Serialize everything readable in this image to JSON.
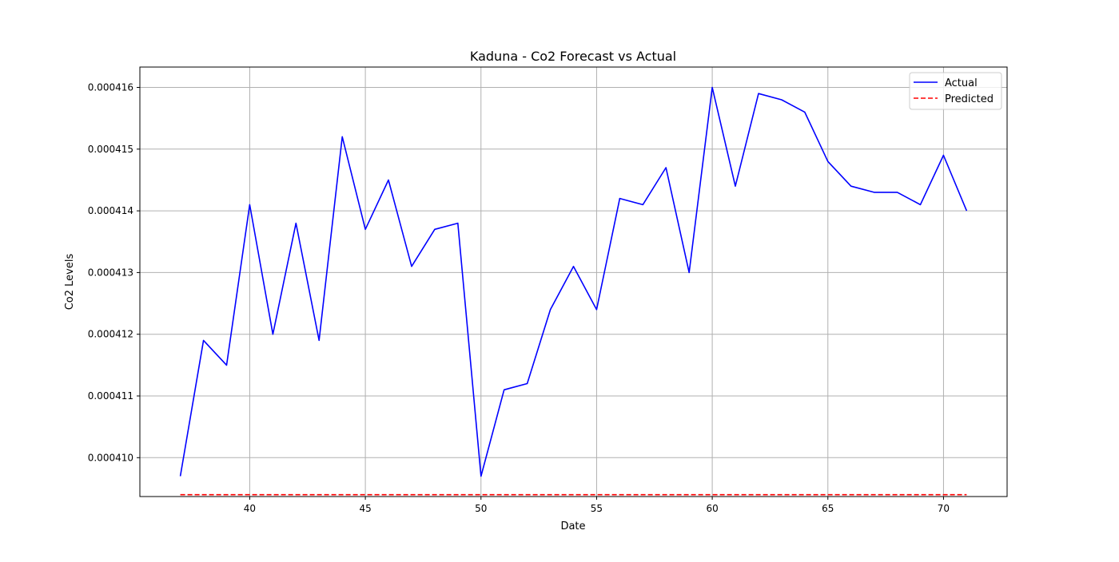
{
  "chart_data": {
    "type": "line",
    "title": "Kaduna - Co2 Forecast vs Actual",
    "xlabel": "Date",
    "ylabel": "Co2 Levels",
    "xlim": [
      35.25,
      72.75
    ],
    "ylim": [
      0.00040937,
      0.00041633
    ],
    "xticks": [
      40,
      45,
      50,
      55,
      60,
      65,
      70
    ],
    "xtick_labels": [
      "40",
      "45",
      "50",
      "55",
      "60",
      "65",
      "70"
    ],
    "yticks": [
      0.00041,
      0.000411,
      0.000412,
      0.000413,
      0.000414,
      0.000415,
      0.000416
    ],
    "ytick_labels": [
      "0.000410",
      "0.000411",
      "0.000412",
      "0.000413",
      "0.000414",
      "0.000415",
      "0.000416"
    ],
    "grid": true,
    "legend_position": "top-right",
    "x": [
      37,
      38,
      39,
      40,
      41,
      42,
      43,
      44,
      45,
      46,
      47,
      48,
      49,
      50,
      51,
      52,
      53,
      54,
      55,
      56,
      57,
      58,
      59,
      60,
      61,
      62,
      63,
      64,
      65,
      66,
      67,
      68,
      69,
      70,
      71
    ],
    "series": [
      {
        "name": "Actual",
        "color": "#0000ff",
        "style": "solid",
        "values": [
          0.0004097,
          0.0004119,
          0.0004115,
          0.0004141,
          0.000412,
          0.0004138,
          0.0004119,
          0.0004152,
          0.0004137,
          0.0004145,
          0.0004131,
          0.0004137,
          0.0004138,
          0.0004097,
          0.0004111,
          0.0004112,
          0.0004124,
          0.0004131,
          0.0004124,
          0.0004142,
          0.0004141,
          0.0004147,
          0.000413,
          0.000416,
          0.0004144,
          0.0004159,
          0.0004158,
          0.0004156,
          0.0004148,
          0.0004144,
          0.0004143,
          0.0004143,
          0.0004141,
          0.0004149,
          0.000414
        ]
      },
      {
        "name": "Predicted",
        "color": "#ff0000",
        "style": "dashed",
        "values": [
          0.0004094,
          0.0004094,
          0.0004094,
          0.0004094,
          0.0004094,
          0.0004094,
          0.0004094,
          0.0004094,
          0.0004094,
          0.0004094,
          0.0004094,
          0.0004094,
          0.0004094,
          0.0004094,
          0.0004094,
          0.0004094,
          0.0004094,
          0.0004094,
          0.0004094,
          0.0004094,
          0.0004094,
          0.0004094,
          0.0004094,
          0.0004094,
          0.0004094,
          0.0004094,
          0.0004094,
          0.0004094,
          0.0004094,
          0.0004094,
          0.0004094,
          0.0004094,
          0.0004094,
          0.0004094,
          0.0004094
        ]
      }
    ]
  }
}
